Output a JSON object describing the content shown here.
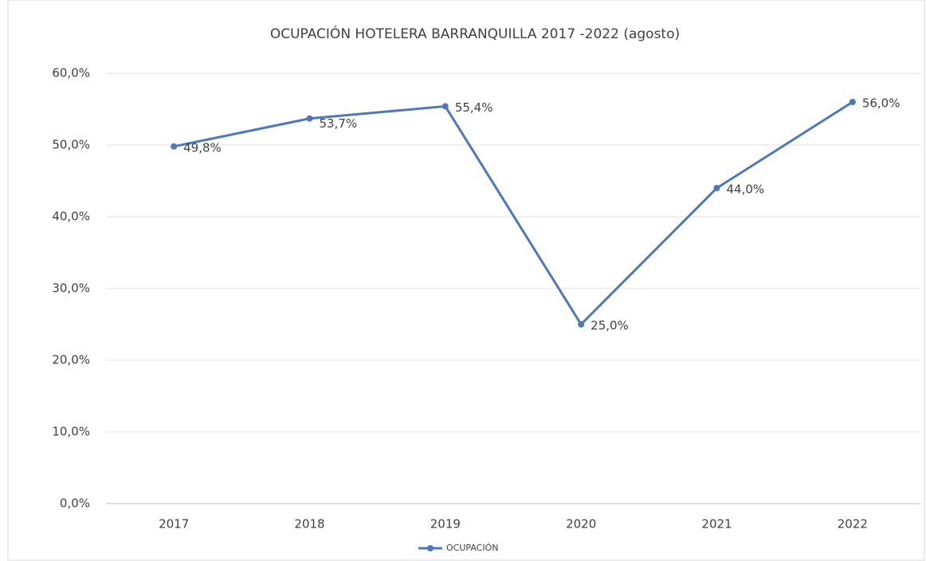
{
  "chart_data": {
    "type": "line",
    "title": "OCUPACIÓN HOTELERA BARRANQUILLA 2017 -2022 (agosto)",
    "categories": [
      "2017",
      "2018",
      "2019",
      "2020",
      "2021",
      "2022"
    ],
    "series": [
      {
        "name": "OCUPACIÓN",
        "color": "#4e78b8",
        "values": [
          49.8,
          53.7,
          55.4,
          25.0,
          44.0,
          56.0
        ],
        "value_labels": [
          "49,8%",
          "53,7%",
          "55,4%",
          "25,0%",
          "44,0%",
          "56,0%"
        ]
      }
    ],
    "ylim": [
      0,
      60
    ],
    "yticks": [
      {
        "value": 0,
        "label": "0,0%"
      },
      {
        "value": 10,
        "label": "10,0%"
      },
      {
        "value": 20,
        "label": "20,0%"
      },
      {
        "value": 30,
        "label": "30,0%"
      },
      {
        "value": 40,
        "label": "40,0%"
      },
      {
        "value": 50,
        "label": "50,0%"
      },
      {
        "value": 60,
        "label": "60,0%"
      }
    ],
    "grid": true,
    "legend": "bottom"
  }
}
